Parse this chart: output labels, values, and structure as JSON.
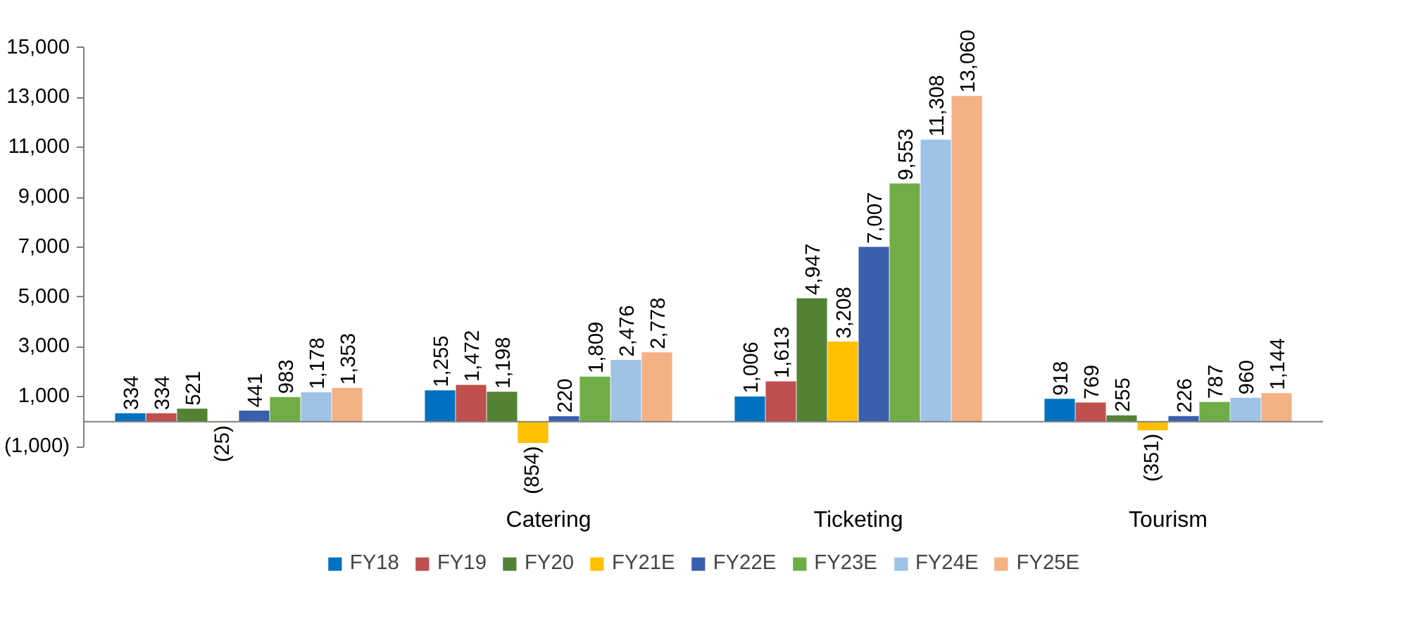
{
  "chart_data": {
    "type": "bar",
    "categories": [
      null,
      "Catering",
      "Ticketing",
      "Tourism"
    ],
    "ylim": [
      -1000,
      15000
    ],
    "yticks": [
      {
        "value": -1000,
        "label": "(1,000)"
      },
      {
        "value": 1000,
        "label": "1,000"
      },
      {
        "value": 3000,
        "label": "3,000"
      },
      {
        "value": 5000,
        "label": "5,000"
      },
      {
        "value": 7000,
        "label": "7,000"
      },
      {
        "value": 9000,
        "label": "9,000"
      },
      {
        "value": 11000,
        "label": "11,000"
      },
      {
        "value": 13000,
        "label": "13,000"
      },
      {
        "value": 15000,
        "label": "15,000"
      }
    ],
    "grid": false,
    "legend": "bottom",
    "series": [
      {
        "name": "FY18",
        "color": "#0070c0",
        "values": [
          334,
          1255,
          1006,
          918
        ],
        "value_labels": [
          "334",
          "1,255",
          "1,006",
          "918"
        ]
      },
      {
        "name": "FY19",
        "color": "#c0504d",
        "values": [
          334,
          1472,
          1613,
          769
        ],
        "value_labels": [
          "334",
          "1,472",
          "1,613",
          "769"
        ]
      },
      {
        "name": "FY20",
        "color": "#548235",
        "values": [
          521,
          1198,
          4947,
          255
        ],
        "value_labels": [
          "521",
          "1,198",
          "4,947",
          "255"
        ]
      },
      {
        "name": "FY21E",
        "color": "#ffc000",
        "values": [
          -25,
          -854,
          3208,
          -351
        ],
        "value_labels": [
          "(25)",
          "(854)",
          "3,208",
          "(351)"
        ]
      },
      {
        "name": "FY22E",
        "color": "#3a5fad",
        "values": [
          441,
          220,
          7007,
          226
        ],
        "value_labels": [
          "441",
          "220",
          "7,007",
          "226"
        ]
      },
      {
        "name": "FY23E",
        "color": "#70ad47",
        "values": [
          983,
          1809,
          9553,
          787
        ],
        "value_labels": [
          "983",
          "1,809",
          "9,553",
          "787"
        ]
      },
      {
        "name": "FY24E",
        "color": "#9dc3e6",
        "values": [
          1178,
          2476,
          11308,
          960
        ],
        "value_labels": [
          "1,178",
          "2,476",
          "11,308",
          "960"
        ]
      },
      {
        "name": "FY25E",
        "color": "#f4b183",
        "values": [
          1353,
          2778,
          13060,
          1144
        ],
        "value_labels": [
          "1,353",
          "2,778",
          "13,060",
          "1,144"
        ]
      }
    ]
  }
}
